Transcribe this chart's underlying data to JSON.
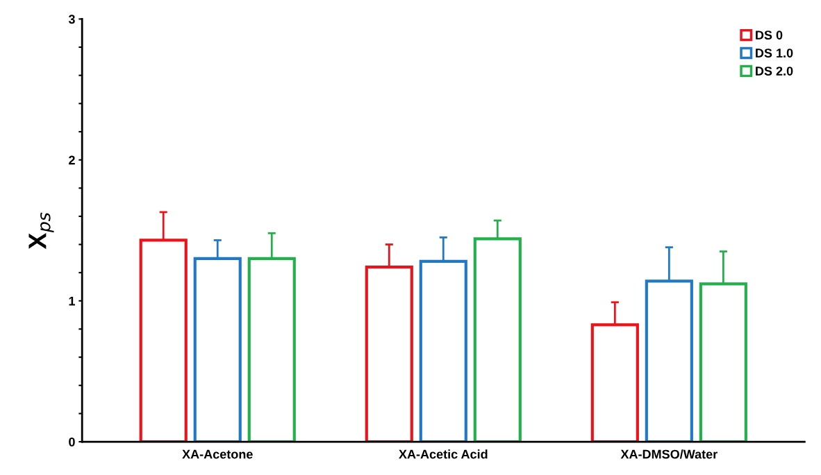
{
  "chart_data": {
    "type": "bar",
    "ylabel": "X$_{ps}$",
    "categories": [
      "XA-Acetone",
      "XA-Acetic Acid",
      "XA-DMSO/Water"
    ],
    "series": [
      {
        "name": "DS 0",
        "color": "#e8141b",
        "values": [
          1.43,
          1.24,
          0.83
        ],
        "errors": [
          [
            1.43,
            1.63
          ],
          [
            1.24,
            1.4
          ],
          [
            0.83,
            0.99
          ]
        ]
      },
      {
        "name": "DS 1.0",
        "color": "#1f78c8",
        "values": [
          1.3,
          1.28,
          1.14
        ],
        "errors": [
          [
            1.3,
            1.43
          ],
          [
            1.28,
            1.45
          ],
          [
            1.14,
            1.38
          ]
        ]
      },
      {
        "name": "DS 2.0",
        "color": "#22b04b",
        "values": [
          1.3,
          1.44,
          1.12
        ],
        "errors": [
          [
            1.3,
            1.48
          ],
          [
            1.44,
            1.57
          ],
          [
            1.12,
            1.35
          ]
        ]
      }
    ],
    "ylim": [
      0,
      3
    ],
    "yticks": [
      0,
      {
        "value": 0.2,
        "label": null
      },
      {
        "value": 0.4,
        "label": null
      },
      {
        "value": 0.6,
        "label": null
      },
      {
        "value": 0.8,
        "label": null
      },
      1,
      {
        "value": 1.2,
        "label": null
      },
      {
        "value": 1.4,
        "label": null
      },
      {
        "value": 1.6,
        "label": null
      },
      {
        "value": 1.8,
        "label": null
      },
      2,
      {
        "value": 2.2,
        "label": null
      },
      {
        "value": 2.4,
        "label": null
      },
      {
        "value": 2.6,
        "label": null
      },
      {
        "value": 2.8,
        "label": null
      },
      3
    ],
    "grid": false,
    "legend": "top right"
  }
}
